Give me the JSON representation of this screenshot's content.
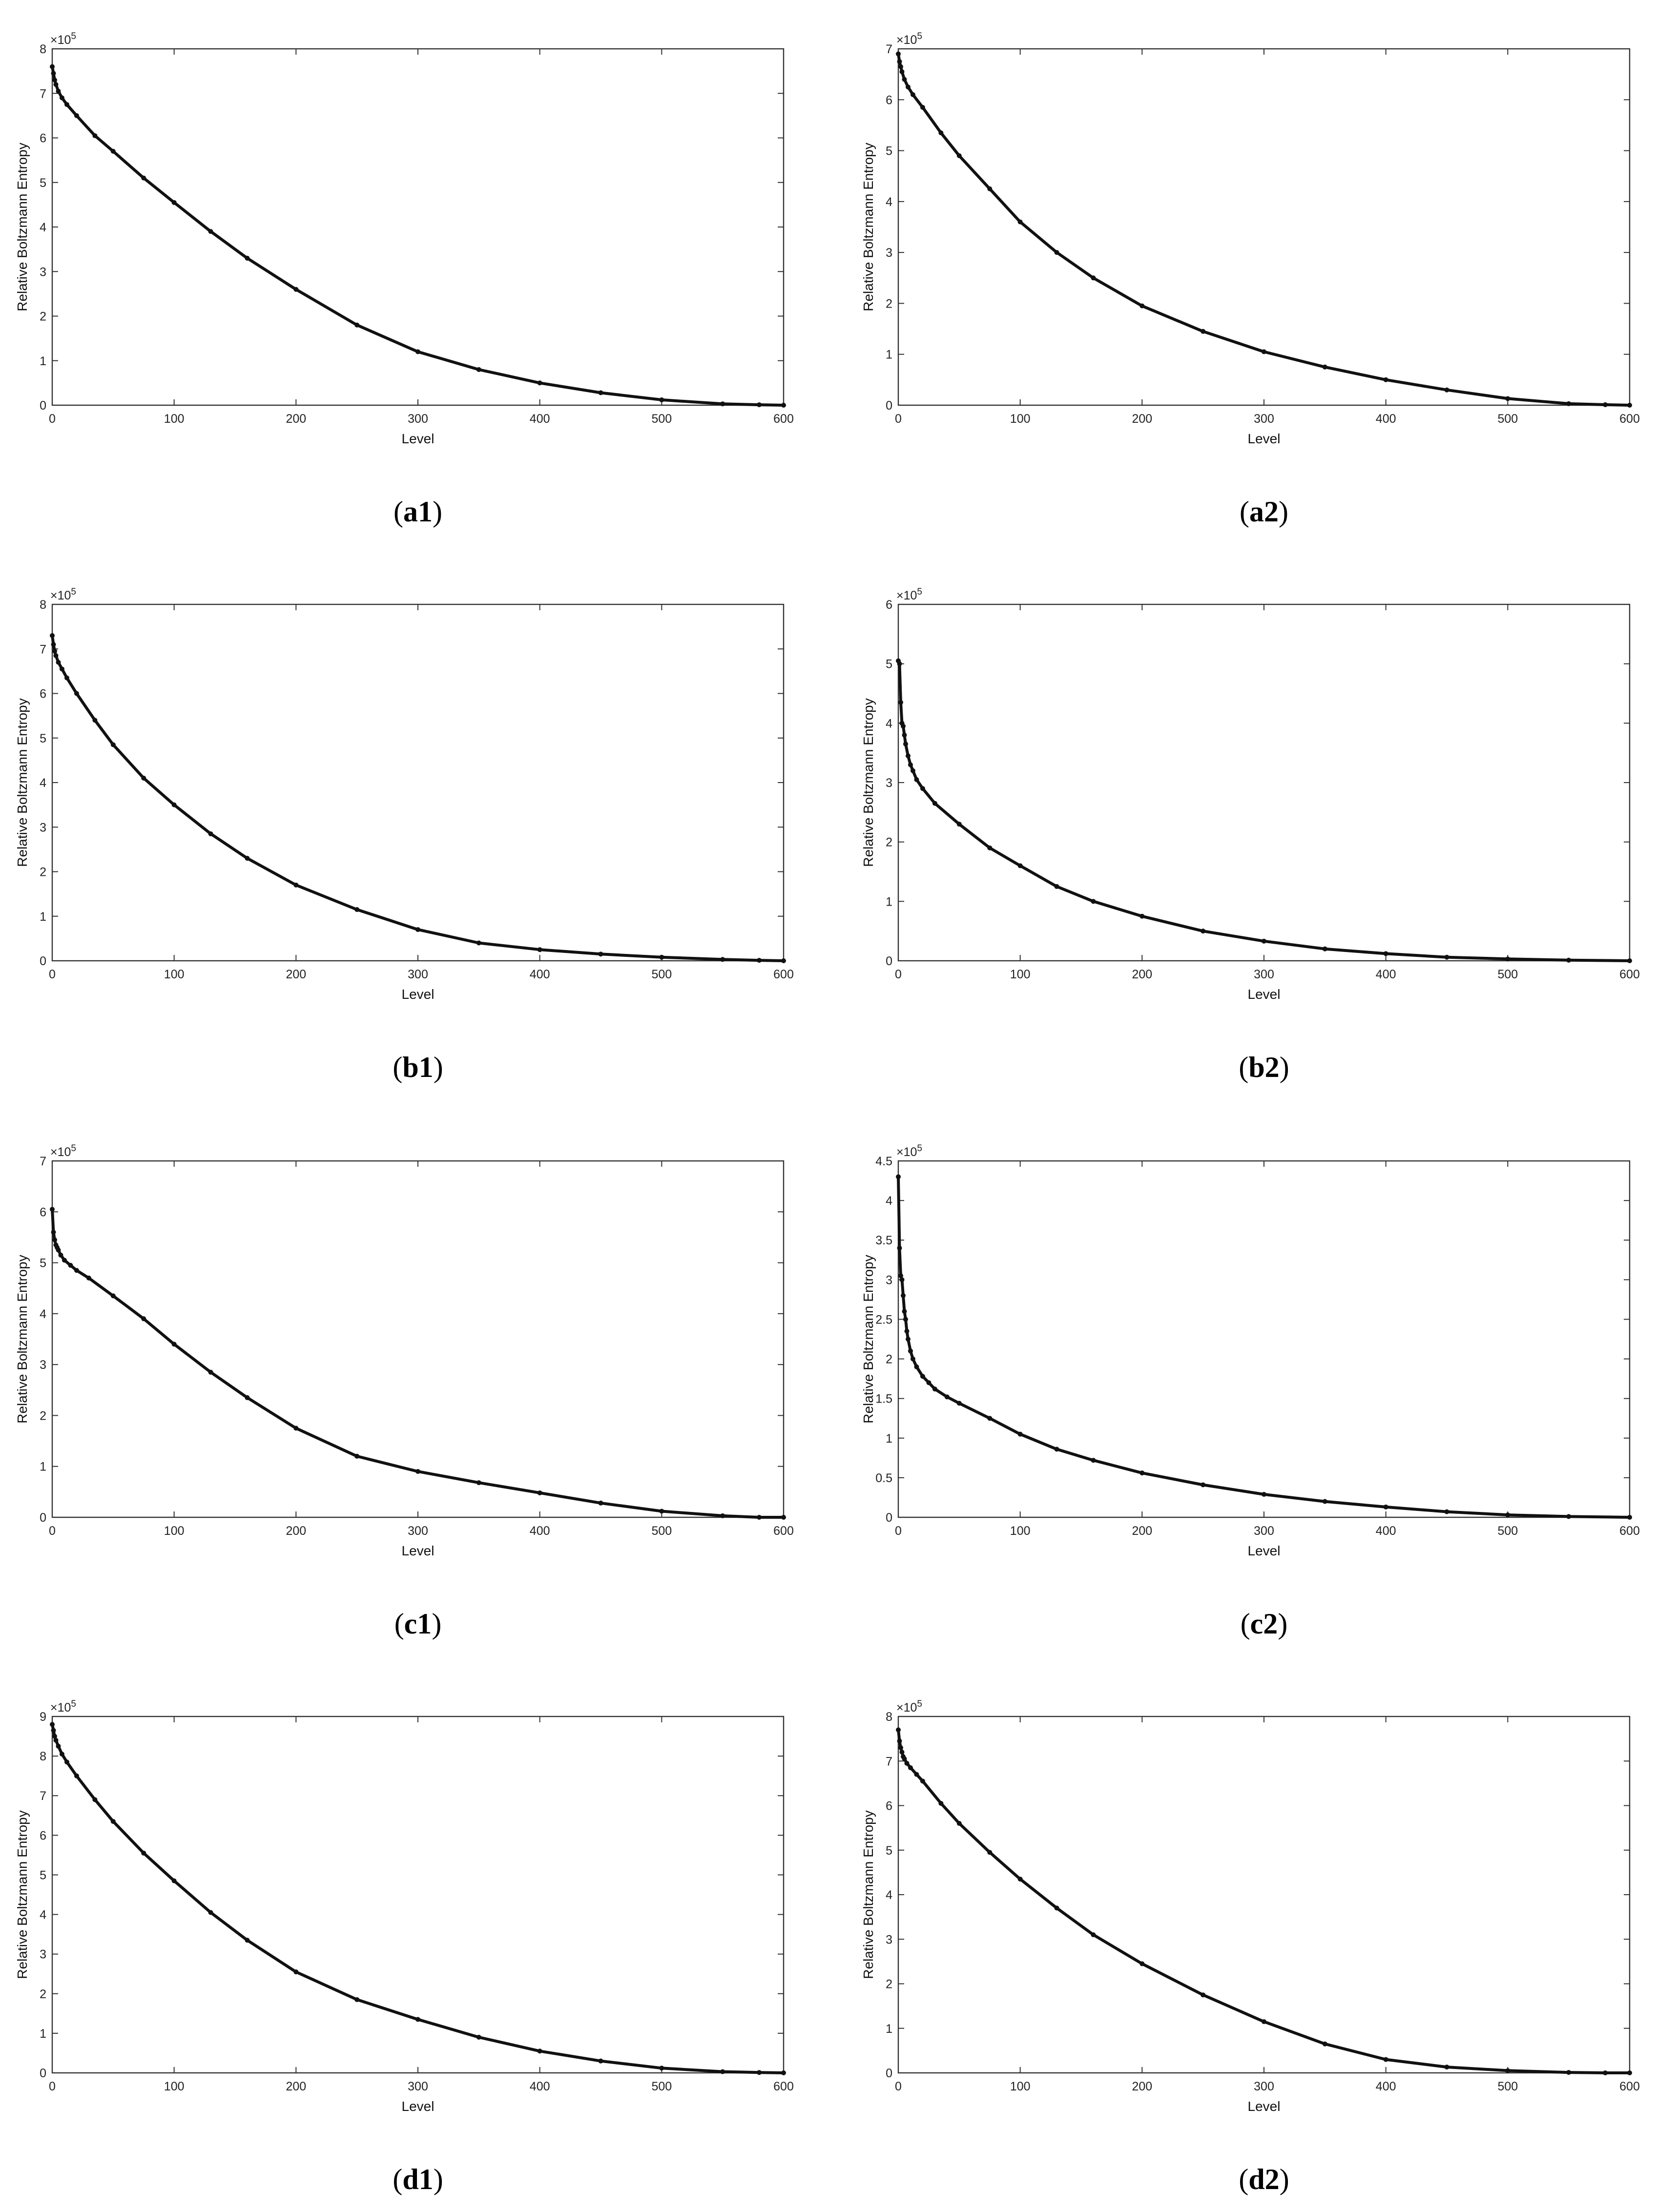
{
  "chart_data": [
    {
      "id": "a1",
      "type": "scatter",
      "caption": {
        "open": "(",
        "label": "a1",
        "close": ")"
      },
      "xlabel": "Level",
      "ylabel": "Relative Boltzmann Entropy",
      "y_multiplier": {
        "base": "×10",
        "exponent": "5"
      },
      "xlim": [
        0,
        600
      ],
      "ylim": [
        0,
        8
      ],
      "xticks": [
        0,
        100,
        200,
        300,
        400,
        500,
        600
      ],
      "yticks": [
        0,
        1,
        2,
        3,
        4,
        5,
        6,
        7,
        8
      ],
      "x": [
        0,
        1,
        2,
        3,
        5,
        8,
        12,
        20,
        35,
        50,
        75,
        100,
        130,
        160,
        200,
        250,
        300,
        350,
        400,
        450,
        500,
        550,
        580,
        600
      ],
      "y": [
        7.6,
        7.45,
        7.3,
        7.2,
        7.05,
        6.9,
        6.75,
        6.5,
        6.05,
        5.7,
        5.1,
        4.55,
        3.9,
        3.3,
        2.6,
        1.8,
        1.2,
        0.8,
        0.5,
        0.28,
        0.12,
        0.03,
        0.01,
        0.0
      ]
    },
    {
      "id": "a2",
      "type": "scatter",
      "caption": {
        "open": "(",
        "label": "a2",
        "close": ")"
      },
      "xlabel": "Level",
      "ylabel": "Relative Boltzmann Entropy",
      "y_multiplier": {
        "base": "×10",
        "exponent": "5"
      },
      "xlim": [
        0,
        600
      ],
      "ylim": [
        0,
        7
      ],
      "xticks": [
        0,
        100,
        200,
        300,
        400,
        500,
        600
      ],
      "yticks": [
        0,
        1,
        2,
        3,
        4,
        5,
        6,
        7
      ],
      "x": [
        0,
        1,
        2,
        3,
        5,
        8,
        12,
        20,
        35,
        50,
        75,
        100,
        130,
        160,
        200,
        250,
        300,
        350,
        400,
        450,
        500,
        550,
        580,
        600
      ],
      "y": [
        6.9,
        6.75,
        6.65,
        6.55,
        6.4,
        6.25,
        6.1,
        5.85,
        5.35,
        4.9,
        4.25,
        3.6,
        3.0,
        2.5,
        1.95,
        1.45,
        1.05,
        0.75,
        0.5,
        0.3,
        0.13,
        0.03,
        0.01,
        0.0
      ]
    },
    {
      "id": "b1",
      "type": "scatter",
      "caption": {
        "open": "(",
        "label": "b1",
        "close": ")"
      },
      "xlabel": "Level",
      "ylabel": "Relative Boltzmann Entropy",
      "y_multiplier": {
        "base": "×10",
        "exponent": "5"
      },
      "xlim": [
        0,
        600
      ],
      "ylim": [
        0,
        8
      ],
      "xticks": [
        0,
        100,
        200,
        300,
        400,
        500,
        600
      ],
      "yticks": [
        0,
        1,
        2,
        3,
        4,
        5,
        6,
        7,
        8
      ],
      "x": [
        0,
        1,
        2,
        3,
        5,
        8,
        12,
        20,
        35,
        50,
        75,
        100,
        130,
        160,
        200,
        250,
        300,
        350,
        400,
        450,
        500,
        550,
        580,
        600
      ],
      "y": [
        7.3,
        7.1,
        6.95,
        6.85,
        6.7,
        6.55,
        6.35,
        6.0,
        5.4,
        4.85,
        4.1,
        3.5,
        2.85,
        2.3,
        1.7,
        1.15,
        0.7,
        0.4,
        0.25,
        0.15,
        0.08,
        0.03,
        0.01,
        0.0
      ]
    },
    {
      "id": "b2",
      "type": "scatter",
      "caption": {
        "open": "(",
        "label": "b2",
        "close": ")"
      },
      "xlabel": "Level",
      "ylabel": "Relative Boltzmann Entropy",
      "y_multiplier": {
        "base": "×10",
        "exponent": "5"
      },
      "xlim": [
        0,
        600
      ],
      "ylim": [
        0,
        6
      ],
      "xticks": [
        0,
        100,
        200,
        300,
        400,
        500,
        600
      ],
      "yticks": [
        0,
        1,
        2,
        3,
        4,
        5,
        6
      ],
      "x": [
        0,
        1,
        2,
        3,
        4,
        5,
        6,
        8,
        10,
        12,
        15,
        20,
        30,
        50,
        75,
        100,
        130,
        160,
        200,
        250,
        300,
        350,
        400,
        450,
        500,
        550,
        600
      ],
      "y": [
        5.05,
        5.0,
        4.35,
        4.0,
        3.95,
        3.8,
        3.65,
        3.45,
        3.3,
        3.2,
        3.05,
        2.9,
        2.65,
        2.3,
        1.9,
        1.6,
        1.25,
        1.0,
        0.75,
        0.5,
        0.33,
        0.2,
        0.12,
        0.06,
        0.03,
        0.01,
        0.0
      ]
    },
    {
      "id": "c1",
      "type": "scatter",
      "caption": {
        "open": "(",
        "label": "c1",
        "close": ")"
      },
      "xlabel": "Level",
      "ylabel": "Relative Boltzmann Entropy",
      "y_multiplier": {
        "base": "×10",
        "exponent": "5"
      },
      "xlim": [
        0,
        600
      ],
      "ylim": [
        0,
        7
      ],
      "xticks": [
        0,
        100,
        200,
        300,
        400,
        500,
        600
      ],
      "yticks": [
        0,
        1,
        2,
        3,
        4,
        5,
        6,
        7
      ],
      "x": [
        0,
        1,
        2,
        3,
        4,
        5,
        7,
        10,
        15,
        20,
        30,
        50,
        75,
        100,
        130,
        160,
        200,
        250,
        300,
        350,
        400,
        450,
        500,
        550,
        580,
        600
      ],
      "y": [
        6.05,
        5.6,
        5.45,
        5.35,
        5.3,
        5.25,
        5.15,
        5.05,
        4.95,
        4.85,
        4.7,
        4.35,
        3.9,
        3.4,
        2.85,
        2.35,
        1.75,
        1.2,
        0.9,
        0.68,
        0.48,
        0.28,
        0.12,
        0.03,
        0.0,
        0.0
      ]
    },
    {
      "id": "c2",
      "type": "scatter",
      "caption": {
        "open": "(",
        "label": "c2",
        "close": ")"
      },
      "xlabel": "Level",
      "ylabel": "Relative Boltzmann Entropy",
      "y_multiplier": {
        "base": "×10",
        "exponent": "5"
      },
      "xlim": [
        0,
        600
      ],
      "ylim": [
        0,
        4.5
      ],
      "xticks": [
        0,
        100,
        200,
        300,
        400,
        500,
        600
      ],
      "yticks": [
        0,
        0.5,
        1,
        1.5,
        2,
        2.5,
        3,
        3.5,
        4,
        4.5
      ],
      "x": [
        0,
        1,
        2,
        3,
        4,
        5,
        6,
        7,
        8,
        10,
        12,
        15,
        20,
        25,
        30,
        40,
        50,
        75,
        100,
        130,
        160,
        200,
        250,
        300,
        350,
        400,
        450,
        500,
        550,
        600
      ],
      "y": [
        4.3,
        3.4,
        3.05,
        3.0,
        2.8,
        2.6,
        2.5,
        2.35,
        2.25,
        2.1,
        2.0,
        1.9,
        1.78,
        1.7,
        1.62,
        1.52,
        1.44,
        1.25,
        1.05,
        0.86,
        0.72,
        0.56,
        0.41,
        0.29,
        0.2,
        0.13,
        0.07,
        0.03,
        0.01,
        0.0
      ]
    },
    {
      "id": "d1",
      "type": "scatter",
      "caption": {
        "open": "(",
        "label": "d1",
        "close": ")"
      },
      "xlabel": "Level",
      "ylabel": "Relative Boltzmann Entropy",
      "y_multiplier": {
        "base": "×10",
        "exponent": "5"
      },
      "xlim": [
        0,
        600
      ],
      "ylim": [
        0,
        9
      ],
      "xticks": [
        0,
        100,
        200,
        300,
        400,
        500,
        600
      ],
      "yticks": [
        0,
        1,
        2,
        3,
        4,
        5,
        6,
        7,
        8,
        9
      ],
      "x": [
        0,
        1,
        2,
        3,
        5,
        8,
        12,
        20,
        35,
        50,
        75,
        100,
        130,
        160,
        200,
        250,
        300,
        350,
        400,
        450,
        500,
        550,
        580,
        600
      ],
      "y": [
        8.8,
        8.65,
        8.5,
        8.4,
        8.25,
        8.05,
        7.85,
        7.5,
        6.9,
        6.35,
        5.55,
        4.85,
        4.05,
        3.35,
        2.55,
        1.85,
        1.35,
        0.9,
        0.55,
        0.3,
        0.12,
        0.03,
        0.01,
        0.0
      ]
    },
    {
      "id": "d2",
      "type": "scatter",
      "caption": {
        "open": "(",
        "label": "d2",
        "close": ")"
      },
      "xlabel": "Level",
      "ylabel": "Relative Boltzmann Entropy",
      "y_multiplier": {
        "base": "×10",
        "exponent": "5"
      },
      "xlim": [
        0,
        600
      ],
      "ylim": [
        0,
        8
      ],
      "xticks": [
        0,
        100,
        200,
        300,
        400,
        500,
        600
      ],
      "yticks": [
        0,
        1,
        2,
        3,
        4,
        5,
        6,
        7,
        8
      ],
      "x": [
        0,
        1,
        2,
        3,
        4,
        5,
        7,
        10,
        15,
        20,
        35,
        50,
        75,
        100,
        130,
        160,
        200,
        250,
        300,
        350,
        400,
        450,
        500,
        550,
        580,
        600
      ],
      "y": [
        7.7,
        7.45,
        7.3,
        7.2,
        7.1,
        7.05,
        6.95,
        6.85,
        6.7,
        6.55,
        6.05,
        5.6,
        4.95,
        4.35,
        3.7,
        3.1,
        2.45,
        1.75,
        1.15,
        0.65,
        0.3,
        0.13,
        0.05,
        0.01,
        0.0,
        0.0
      ]
    }
  ]
}
